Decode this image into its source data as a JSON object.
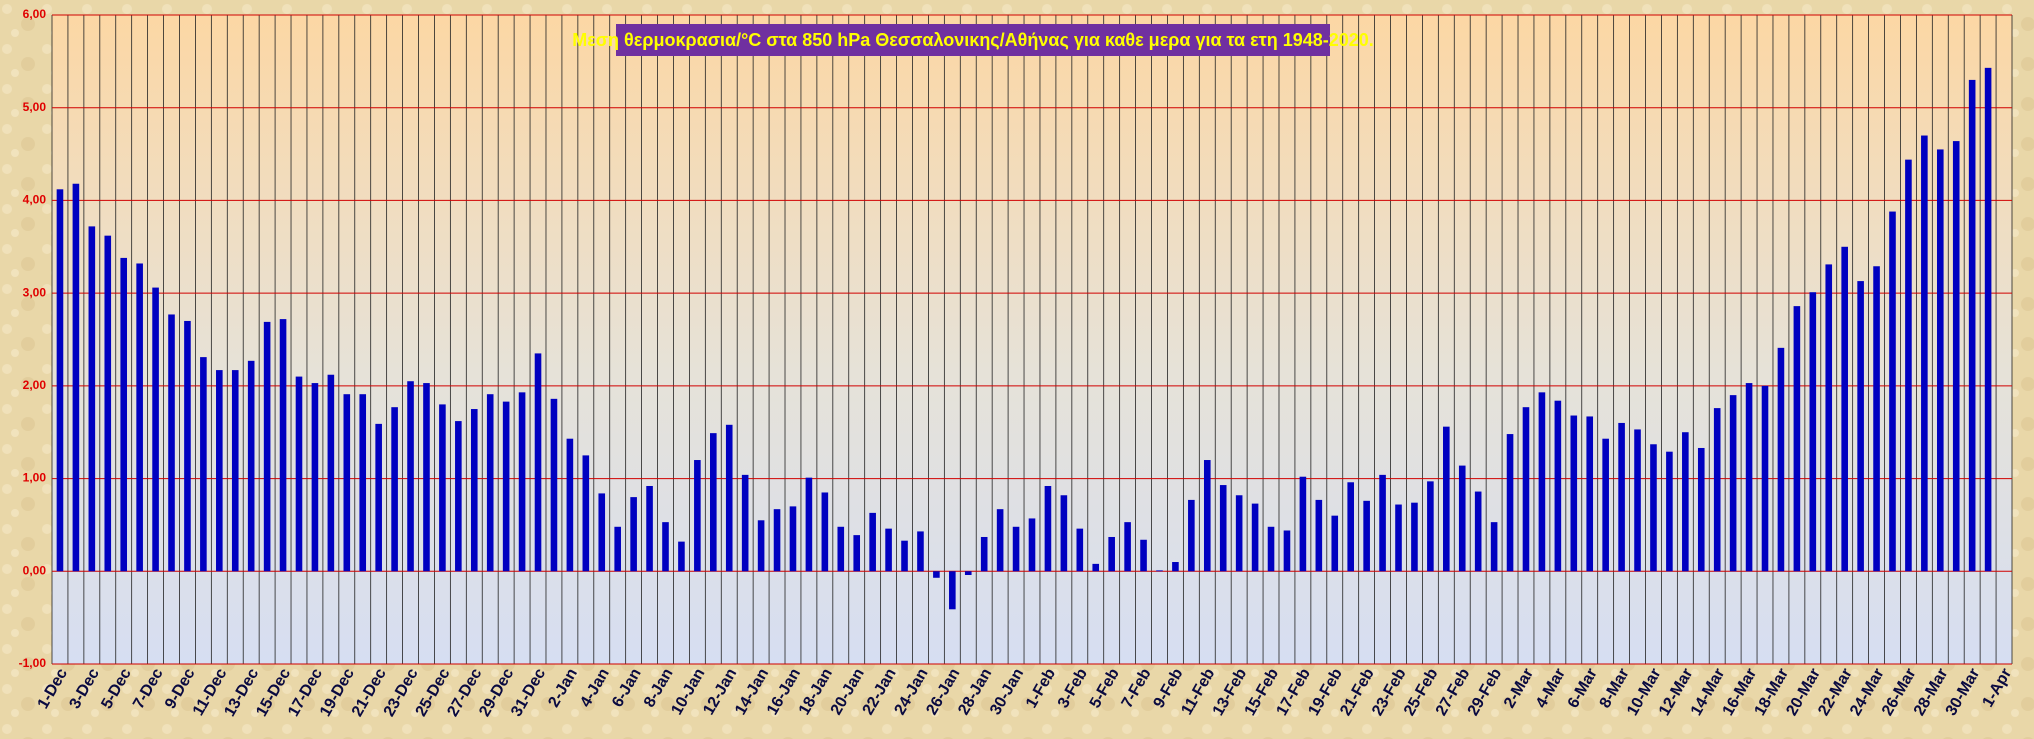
{
  "chart_data": {
    "type": "bar",
    "title": "Μεση θερμοκρασια/°C στα 850 hPa Θεσσαλονικης/Αθήνας για καθε μερα για τα ετη 1948-2020.",
    "categories": [
      "1-Dec",
      null,
      "3-Dec",
      null,
      "5-Dec",
      null,
      "7-Dec",
      null,
      "9-Dec",
      null,
      "11-Dec",
      null,
      "13-Dec",
      null,
      "15-Dec",
      null,
      "17-Dec",
      null,
      "19-Dec",
      null,
      "21-Dec",
      null,
      "23-Dec",
      null,
      "25-Dec",
      null,
      "27-Dec",
      null,
      "29-Dec",
      null,
      "31-Dec",
      null,
      "2-Jan",
      null,
      "4-Jan",
      null,
      "6-Jan",
      null,
      "8-Jan",
      null,
      "10-Jan",
      null,
      "12-Jan",
      null,
      "14-Jan",
      null,
      "16-Jan",
      null,
      "18-Jan",
      null,
      "20-Jan",
      null,
      "22-Jan",
      null,
      "24-Jan",
      null,
      "26-Jan",
      null,
      "28-Jan",
      null,
      "30-Jan",
      null,
      "1-Feb",
      null,
      "3-Feb",
      null,
      "5-Feb",
      null,
      "7-Feb",
      null,
      "9-Feb",
      null,
      "11-Feb",
      null,
      "13-Feb",
      null,
      "15-Feb",
      null,
      "17-Feb",
      null,
      "19-Feb",
      null,
      "21-Feb",
      null,
      "23-Feb",
      null,
      "25-Feb",
      null,
      "27-Feb",
      null,
      "29-Feb",
      null,
      "2-Mar",
      null,
      "4-Mar",
      null,
      "6-Mar",
      null,
      "8-Mar",
      null,
      "10-Mar",
      null,
      "12-Mar",
      null,
      "14-Mar",
      null,
      "16-Mar",
      null,
      "18-Mar",
      null,
      "20-Mar",
      null,
      "22-Mar",
      null,
      "24-Mar",
      null,
      "26-Mar",
      null,
      "28-Mar",
      null,
      "30-Mar",
      null,
      "1-Apr"
    ],
    "values": [
      4.12,
      4.18,
      3.72,
      3.62,
      3.38,
      3.32,
      3.06,
      2.77,
      2.7,
      2.31,
      2.17,
      2.17,
      2.27,
      2.69,
      2.72,
      2.1,
      2.03,
      2.12,
      1.91,
      1.91,
      1.59,
      1.77,
      2.05,
      2.03,
      1.8,
      1.62,
      1.75,
      1.91,
      1.83,
      1.93,
      2.35,
      1.86,
      1.43,
      1.25,
      0.84,
      0.48,
      0.8,
      0.92,
      0.53,
      0.32,
      1.2,
      1.49,
      1.58,
      1.04,
      0.55,
      0.67,
      0.7,
      1.01,
      0.85,
      0.48,
      0.39,
      0.63,
      0.46,
      0.33,
      0.43,
      -0.07,
      -0.41,
      -0.04,
      0.37,
      0.67,
      0.48,
      0.57,
      0.92,
      0.82,
      0.46,
      0.08,
      0.37,
      0.53,
      0.34,
      0.01,
      0.1,
      0.77,
      1.2,
      0.93,
      0.82,
      0.73,
      0.48,
      0.44,
      1.02,
      0.77,
      0.6,
      0.96,
      0.76,
      1.04,
      0.72,
      0.74,
      0.97,
      1.56,
      1.14,
      0.86,
      0.53,
      1.48,
      1.77,
      1.93,
      1.84,
      1.68,
      1.67,
      1.43,
      1.6,
      1.53,
      1.37,
      1.29,
      1.5,
      1.33,
      1.76,
      1.9,
      2.03,
      2.0,
      2.41,
      2.86,
      3.01,
      3.31,
      3.5,
      3.13,
      3.29,
      3.88,
      4.44,
      4.7,
      4.55,
      4.64,
      5.3,
      5.43,
      null
    ],
    "color": "#0000c0",
    "ylim": [
      -1,
      6
    ],
    "yticks": [
      {
        "value": -1,
        "label": "-1,00"
      },
      {
        "value": 0,
        "label": "0,00"
      },
      {
        "value": 1,
        "label": "1,00"
      },
      {
        "value": 2,
        "label": "2,00"
      },
      {
        "value": 3,
        "label": "3,00"
      },
      {
        "value": 4,
        "label": "4,00"
      },
      {
        "value": 5,
        "label": "5,00"
      },
      {
        "value": 6,
        "label": "6,00"
      }
    ],
    "grid": true
  }
}
